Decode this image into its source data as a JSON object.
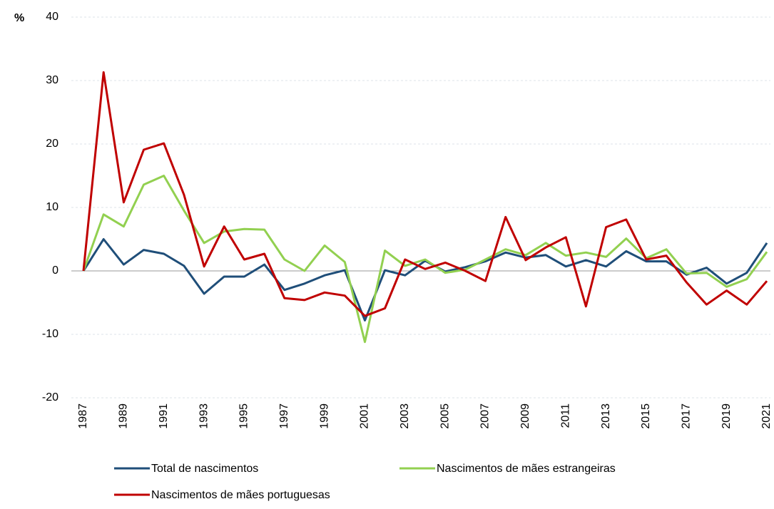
{
  "chart_data": {
    "type": "line",
    "y_label": "%",
    "x": [
      1987,
      1988,
      1989,
      1990,
      1991,
      1992,
      1993,
      1994,
      1995,
      1996,
      1997,
      1998,
      1999,
      2000,
      2001,
      2002,
      2003,
      2004,
      2005,
      2006,
      2007,
      2008,
      2009,
      2010,
      2011,
      2012,
      2013,
      2014,
      2015,
      2016,
      2017,
      2018,
      2019,
      2020,
      2021
    ],
    "xlim": [
      1987,
      2021
    ],
    "xticks": [
      1987,
      1989,
      1991,
      1993,
      1995,
      1997,
      1999,
      2001,
      2003,
      2005,
      2007,
      2009,
      2011,
      2013,
      2015,
      2017,
      2019,
      2021
    ],
    "ylim": [
      -20,
      40
    ],
    "yticks": [
      -20,
      -10,
      0,
      10,
      20,
      30,
      40
    ],
    "grid": true,
    "series": [
      {
        "name": "Total de nascimentos",
        "color": "#1f4e79",
        "values": [
          0,
          5,
          1,
          3.3,
          2.7,
          0.8,
          -3.6,
          -0.9,
          -0.9,
          1,
          -3,
          -2,
          -0.7,
          0.1,
          -7.8,
          0.1,
          -0.7,
          1.6,
          -0.1,
          0.6,
          1.5,
          2.9,
          2.1,
          2.5,
          0.7,
          1.7,
          0.7,
          3.1,
          1.5,
          1.5,
          -0.6,
          0.5,
          -2,
          -0.3,
          4.4
        ]
      },
      {
        "name": "Nascimentos de mães estrangeiras",
        "color": "#92d050",
        "values": [
          0,
          8.9,
          7,
          13.6,
          15,
          9.5,
          4.4,
          6.2,
          6.6,
          6.5,
          1.8,
          0,
          4,
          1.4,
          -11.2,
          3.2,
          0.8,
          1.8,
          -0.3,
          0.2,
          1.8,
          3.4,
          2.5,
          4.4,
          2.4,
          2.9,
          2.2,
          5.1,
          2,
          3.4,
          -0.4,
          -0.3,
          -2.5,
          -1.3,
          3
        ]
      },
      {
        "name": "Nascimentos de mães portuguesas",
        "color": "#c00000",
        "values": [
          0,
          31.3,
          10.8,
          19.1,
          20.1,
          12,
          0.7,
          7,
          1.8,
          2.7,
          -4.3,
          -4.6,
          -3.4,
          -3.9,
          -7.1,
          -5.9,
          1.8,
          0.3,
          1.3,
          0,
          -1.6,
          8.5,
          1.7,
          3.7,
          5.3,
          -5.6,
          6.9,
          8.1,
          1.8,
          2.4,
          -1.8,
          -5.3,
          -3.1,
          -5.3,
          -1.6
        ]
      }
    ]
  }
}
